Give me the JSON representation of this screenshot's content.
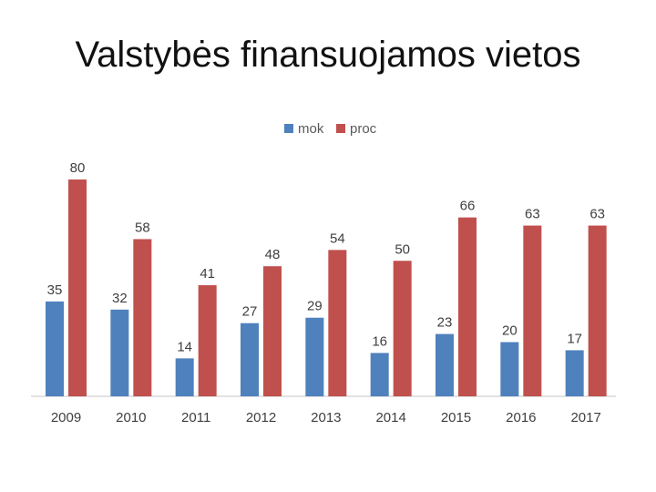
{
  "slide": {
    "title": "Valstybės finansuojamos vietos"
  },
  "chart_data": {
    "type": "bar",
    "title": "",
    "xlabel": "",
    "ylabel": "",
    "categories": [
      "2009",
      "2010",
      "2011",
      "2012",
      "2013",
      "2014",
      "2015",
      "2016",
      "2017"
    ],
    "series": [
      {
        "name": "mok",
        "color": "#4F81BD",
        "values": [
          35,
          32,
          14,
          27,
          29,
          16,
          23,
          20,
          17
        ]
      },
      {
        "name": "proc",
        "color": "#C0504D",
        "values": [
          80,
          58,
          41,
          48,
          54,
          50,
          66,
          63,
          63
        ]
      }
    ],
    "ylim": [
      0,
      80
    ],
    "grid": false,
    "legend_position": "top"
  }
}
